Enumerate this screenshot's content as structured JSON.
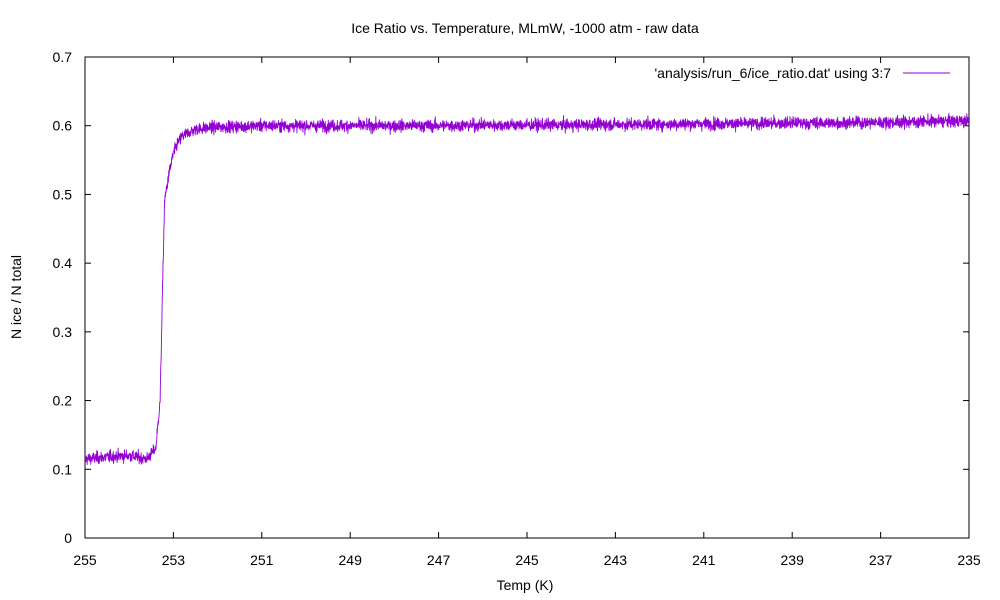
{
  "chart_data": {
    "type": "line",
    "title": "Ice Ratio vs. Temperature, MLmW, -1000 atm - raw data",
    "xlabel": "Temp (K)",
    "ylabel": "N ice / N total",
    "xlim": [
      255,
      235
    ],
    "ylim": [
      0,
      0.7
    ],
    "x_reversed": true,
    "xticks": [
      255,
      253,
      251,
      249,
      247,
      245,
      243,
      241,
      239,
      237,
      235
    ],
    "yticks": [
      0,
      0.1,
      0.2,
      0.3,
      0.4,
      0.5,
      0.6,
      0.7
    ],
    "xtick_labels": [
      "255",
      "253",
      "251",
      "249",
      "247",
      "245",
      "243",
      "241",
      "239",
      "237",
      "235"
    ],
    "ytick_labels": [
      "0",
      "0.1",
      "0.2",
      "0.3",
      "0.4",
      "0.5",
      "0.6",
      "0.7"
    ],
    "grid": false,
    "legend_position": "top-right",
    "series": [
      {
        "name": "'analysis/run_6/ice_ratio.dat' using 3:7",
        "color": "#9400d3",
        "x": [
          255.0,
          254.5,
          254.0,
          253.6,
          253.4,
          253.3,
          253.25,
          253.2,
          253.1,
          253.0,
          252.9,
          252.8,
          252.5,
          252.0,
          251.0,
          250.0,
          249.0,
          248.0,
          247.0,
          246.0,
          245.0,
          244.0,
          243.0,
          242.0,
          241.0,
          240.0,
          239.0,
          238.0,
          237.0,
          236.0,
          235.0
        ],
        "y": [
          0.115,
          0.118,
          0.12,
          0.115,
          0.13,
          0.2,
          0.35,
          0.49,
          0.53,
          0.56,
          0.575,
          0.585,
          0.595,
          0.598,
          0.6,
          0.6,
          0.6,
          0.6,
          0.6,
          0.601,
          0.601,
          0.601,
          0.602,
          0.602,
          0.603,
          0.603,
          0.604,
          0.604,
          0.605,
          0.606,
          0.607
        ]
      }
    ]
  }
}
